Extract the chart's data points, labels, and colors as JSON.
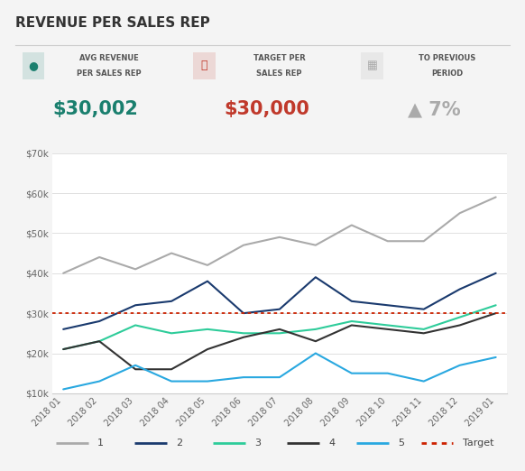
{
  "title": "REVENUE PER SALES REP",
  "kpi1_label1": "AVG REVENUE",
  "kpi1_label2": "PER SALES REP",
  "kpi1_value": "$30,002",
  "kpi1_color": "#1a7f6e",
  "kpi2_label1": "TARGET PER",
  "kpi2_label2": "SALES REP",
  "kpi2_value": "$30,000",
  "kpi2_color": "#c0392b",
  "kpi3_label1": "TO PREVIOUS",
  "kpi3_label2": "PERIOD",
  "kpi3_value": "▲ 7%",
  "kpi3_color": "#aaaaaa",
  "x_labels": [
    "2018 01",
    "2018 02",
    "2018 03",
    "2018 04",
    "2018 05",
    "2018 06",
    "2018 07",
    "2018 08",
    "2018 09",
    "2018 10",
    "2018 11",
    "2018 12",
    "2019 01"
  ],
  "series": {
    "1": [
      40000,
      44000,
      41000,
      45000,
      42000,
      47000,
      49000,
      47000,
      52000,
      48000,
      48000,
      55000,
      59000
    ],
    "2": [
      26000,
      28000,
      32000,
      33000,
      38000,
      30000,
      31000,
      39000,
      33000,
      32000,
      31000,
      36000,
      40000
    ],
    "3": [
      21000,
      23000,
      27000,
      25000,
      26000,
      25000,
      25000,
      26000,
      28000,
      27000,
      26000,
      29000,
      32000
    ],
    "4": [
      21000,
      23000,
      16000,
      16000,
      21000,
      24000,
      26000,
      23000,
      27000,
      26000,
      25000,
      27000,
      30000
    ],
    "5": [
      11000,
      13000,
      17000,
      13000,
      13000,
      14000,
      14000,
      20000,
      15000,
      15000,
      13000,
      17000,
      19000
    ]
  },
  "series_colors": {
    "1": "#aaaaaa",
    "2": "#1a3a6e",
    "3": "#2ecc9a",
    "4": "#333333",
    "5": "#29a8e0"
  },
  "target_value": 30000,
  "target_color": "#cc2200",
  "ylim": [
    10000,
    70000
  ],
  "ytick_vals": [
    10000,
    20000,
    30000,
    40000,
    50000,
    60000,
    70000
  ],
  "ytick_labels": [
    "$10k",
    "$20k",
    "$30k",
    "$40k",
    "$50k",
    "$60k",
    "$70k"
  ],
  "background_color": "#f4f4f4",
  "header_bg": "#e8e8e8",
  "value_bg": "#ebebeb"
}
